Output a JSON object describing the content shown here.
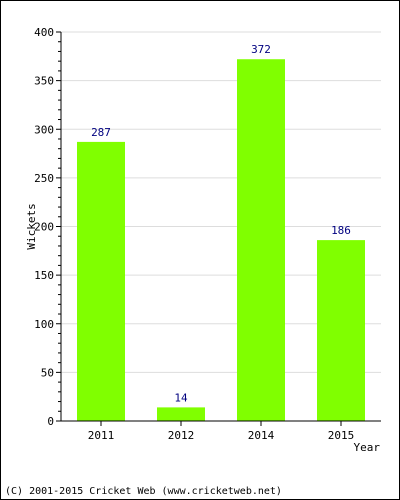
{
  "chart_data": {
    "type": "bar",
    "categories": [
      "2011",
      "2012",
      "2014",
      "2015"
    ],
    "values": [
      287,
      14,
      372,
      186
    ],
    "data_labels": [
      "287",
      "14",
      "372",
      "186"
    ],
    "xlabel": "Year",
    "ylabel": "Wickets",
    "ylim": [
      0,
      400
    ],
    "yticks": [
      0,
      50,
      100,
      150,
      200,
      250,
      300,
      350,
      400
    ],
    "ytick_labels": [
      "0",
      "50",
      "100",
      "150",
      "200",
      "250",
      "300",
      "350",
      "400"
    ],
    "grid": true,
    "legend": "none"
  },
  "colors": {
    "bar": "#80ff00",
    "data_label": "#000080",
    "grid": "#dddddd",
    "axis": "#000000"
  },
  "footer": {
    "copyright": "(C) 2001-2015 Cricket Web (www.cricketweb.net)"
  }
}
